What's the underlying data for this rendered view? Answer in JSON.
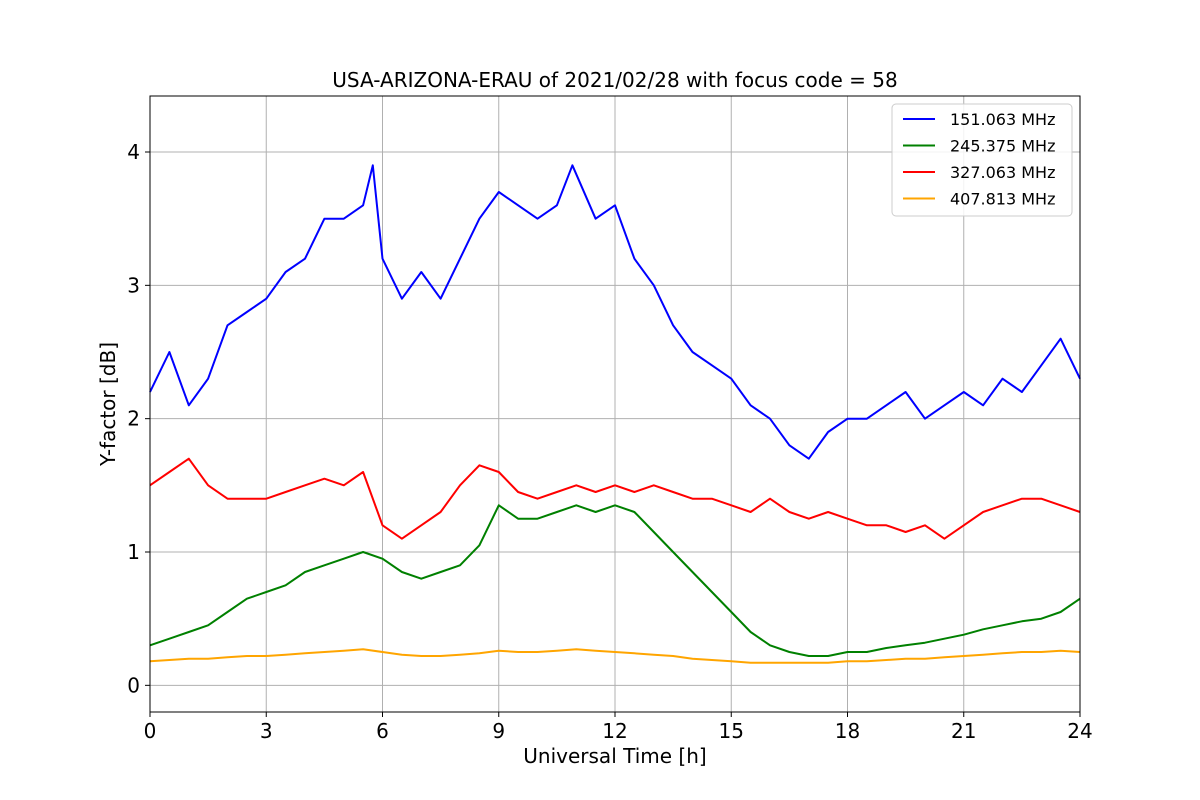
{
  "chart_data": {
    "type": "line",
    "title": "USA-ARIZONA-ERAU of 2021/02/28 with focus code = 58",
    "xlabel": "Universal Time [h]",
    "ylabel": "Y-factor [dB]",
    "xlim": [
      0,
      24
    ],
    "ylim": [
      -0.2,
      4.42
    ],
    "xticks": [
      0,
      3,
      6,
      9,
      12,
      15,
      18,
      21,
      24
    ],
    "yticks": [
      0,
      1,
      2,
      3,
      4
    ],
    "xtick_labels": [
      "0",
      "3",
      "6",
      "9",
      "12",
      "15",
      "18",
      "21",
      "24"
    ],
    "ytick_labels": [
      "0",
      "1",
      "2",
      "3",
      "4"
    ],
    "grid": true,
    "legend_position": "top-right",
    "series": [
      {
        "name": "151.063 MHz",
        "color": "#0000ff",
        "x": [
          0,
          0.5,
          1,
          1.5,
          2,
          2.5,
          3,
          3.5,
          4,
          4.5,
          5,
          5.5,
          5.75,
          6,
          6.5,
          7,
          7.5,
          8,
          8.5,
          9,
          9.5,
          10,
          10.5,
          10.9,
          11.5,
          12,
          12.5,
          13,
          13.5,
          14,
          14.5,
          15,
          15.5,
          16,
          16.5,
          17,
          17.5,
          18,
          18.5,
          19,
          19.5,
          20,
          20.5,
          21,
          21.5,
          22,
          22.5,
          23,
          23.5,
          24
        ],
        "values": [
          2.2,
          2.5,
          2.1,
          2.3,
          2.7,
          2.8,
          2.9,
          3.1,
          3.2,
          3.5,
          3.5,
          3.6,
          3.9,
          3.2,
          2.9,
          3.1,
          2.9,
          3.2,
          3.5,
          3.7,
          3.6,
          3.5,
          3.6,
          3.9,
          3.5,
          3.6,
          3.2,
          3.0,
          2.7,
          2.5,
          2.4,
          2.3,
          2.1,
          2.0,
          1.8,
          1.7,
          1.9,
          2.0,
          2.0,
          2.1,
          2.2,
          2.0,
          2.1,
          2.2,
          2.1,
          2.3,
          2.2,
          2.4,
          2.6,
          2.3
        ]
      },
      {
        "name": "245.375 MHz",
        "color": "#008000",
        "x": [
          0,
          0.5,
          1,
          1.5,
          2,
          2.5,
          3,
          3.5,
          4,
          4.5,
          5,
          5.5,
          6,
          6.5,
          7,
          7.5,
          8,
          8.5,
          9,
          9.5,
          10,
          10.5,
          11,
          11.5,
          12,
          12.5,
          13,
          13.5,
          14,
          14.5,
          15,
          15.5,
          16,
          16.5,
          17,
          17.5,
          18,
          18.5,
          19,
          19.5,
          20,
          20.5,
          21,
          21.5,
          22,
          22.5,
          23,
          23.5,
          24
        ],
        "values": [
          0.3,
          0.35,
          0.4,
          0.45,
          0.55,
          0.65,
          0.7,
          0.75,
          0.85,
          0.9,
          0.95,
          1.0,
          0.95,
          0.85,
          0.8,
          0.85,
          0.9,
          1.05,
          1.35,
          1.25,
          1.25,
          1.3,
          1.35,
          1.3,
          1.35,
          1.3,
          1.15,
          1.0,
          0.85,
          0.7,
          0.55,
          0.4,
          0.3,
          0.25,
          0.22,
          0.22,
          0.25,
          0.25,
          0.28,
          0.3,
          0.32,
          0.35,
          0.38,
          0.42,
          0.45,
          0.48,
          0.5,
          0.55,
          0.65
        ]
      },
      {
        "name": "327.063 MHz",
        "color": "#ff0000",
        "x": [
          0,
          0.5,
          1,
          1.5,
          2,
          2.5,
          3,
          3.5,
          4,
          4.5,
          5,
          5.5,
          6,
          6.5,
          7,
          7.5,
          8,
          8.5,
          9,
          9.5,
          10,
          10.5,
          11,
          11.5,
          12,
          12.5,
          13,
          13.5,
          14,
          14.5,
          15,
          15.5,
          16,
          16.5,
          17,
          17.5,
          18,
          18.5,
          19,
          19.5,
          20,
          20.5,
          21,
          21.5,
          22,
          22.5,
          23,
          23.5,
          24
        ],
        "values": [
          1.5,
          1.6,
          1.7,
          1.5,
          1.4,
          1.4,
          1.4,
          1.45,
          1.5,
          1.55,
          1.5,
          1.6,
          1.2,
          1.1,
          1.2,
          1.3,
          1.5,
          1.65,
          1.6,
          1.45,
          1.4,
          1.45,
          1.5,
          1.45,
          1.5,
          1.45,
          1.5,
          1.45,
          1.4,
          1.4,
          1.35,
          1.3,
          1.4,
          1.3,
          1.25,
          1.3,
          1.25,
          1.2,
          1.2,
          1.15,
          1.2,
          1.1,
          1.2,
          1.3,
          1.35,
          1.4,
          1.4,
          1.35,
          1.3
        ]
      },
      {
        "name": "407.813 MHz",
        "color": "#ffa500",
        "x": [
          0,
          0.5,
          1,
          1.5,
          2,
          2.5,
          3,
          3.5,
          4,
          4.5,
          5,
          5.5,
          6,
          6.5,
          7,
          7.5,
          8,
          8.5,
          9,
          9.5,
          10,
          10.5,
          11,
          11.5,
          12,
          12.5,
          13,
          13.5,
          14,
          14.5,
          15,
          15.5,
          16,
          16.5,
          17,
          17.5,
          18,
          18.5,
          19,
          19.5,
          20,
          20.5,
          21,
          21.5,
          22,
          22.5,
          23,
          23.5,
          24
        ],
        "values": [
          0.18,
          0.19,
          0.2,
          0.2,
          0.21,
          0.22,
          0.22,
          0.23,
          0.24,
          0.25,
          0.26,
          0.27,
          0.25,
          0.23,
          0.22,
          0.22,
          0.23,
          0.24,
          0.26,
          0.25,
          0.25,
          0.26,
          0.27,
          0.26,
          0.25,
          0.24,
          0.23,
          0.22,
          0.2,
          0.19,
          0.18,
          0.17,
          0.17,
          0.17,
          0.17,
          0.17,
          0.18,
          0.18,
          0.19,
          0.2,
          0.2,
          0.21,
          0.22,
          0.23,
          0.24,
          0.25,
          0.25,
          0.26,
          0.25
        ]
      }
    ]
  }
}
